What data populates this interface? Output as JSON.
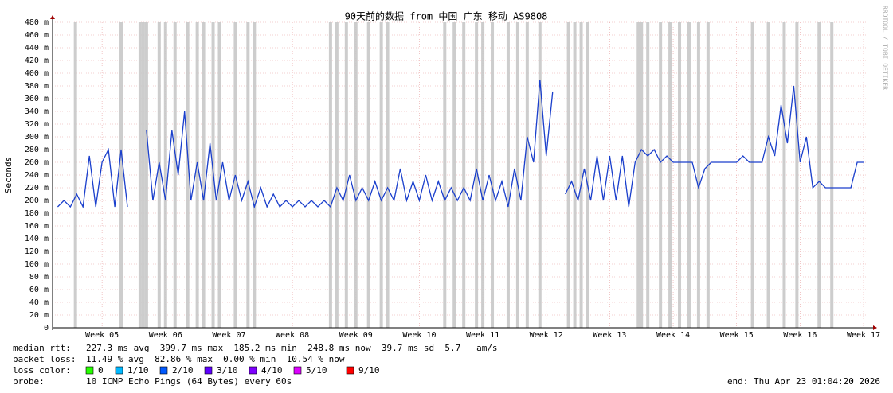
{
  "chart_data": {
    "type": "line",
    "title": "90天前的数据 from 中国 广东 移动 AS9808",
    "y_label": "Seconds",
    "side_label": "RRDTOOL / TOBI OETIKER",
    "grid": true,
    "xlim": [
      4.22,
      17.1
    ],
    "xticks": [
      {
        "value": 5,
        "label": "Week 05"
      },
      {
        "value": 6,
        "label": "Week 06"
      },
      {
        "value": 7,
        "label": "Week 07"
      },
      {
        "value": 8,
        "label": "Week 08"
      },
      {
        "value": 9,
        "label": "Week 09"
      },
      {
        "value": 10,
        "label": "Week 10"
      },
      {
        "value": 11,
        "label": "Week 11"
      },
      {
        "value": 12,
        "label": "Week 12"
      },
      {
        "value": 13,
        "label": "Week 13"
      },
      {
        "value": 14,
        "label": "Week 14"
      },
      {
        "value": 15,
        "label": "Week 15"
      },
      {
        "value": 16,
        "label": "Week 16"
      },
      {
        "value": 17,
        "label": "Week 17"
      }
    ],
    "ylim": [
      0,
      0.48
    ],
    "yticks": [
      0,
      {
        "value": 0.02,
        "label": "20 m"
      },
      {
        "value": 0.04,
        "label": "40 m"
      },
      {
        "value": 0.06,
        "label": "60 m"
      },
      {
        "value": 0.08,
        "label": "80 m"
      },
      {
        "value": 0.1,
        "label": "100 m"
      },
      {
        "value": 0.12,
        "label": "120 m"
      },
      {
        "value": 0.14,
        "label": "140 m"
      },
      {
        "value": 0.16,
        "label": "160 m"
      },
      {
        "value": 0.18,
        "label": "180 m"
      },
      {
        "value": 0.2,
        "label": "200 m"
      },
      {
        "value": 0.22,
        "label": "220 m"
      },
      {
        "value": 0.24,
        "label": "240 m"
      },
      {
        "value": 0.26,
        "label": "260 m"
      },
      {
        "value": 0.28,
        "label": "280 m"
      },
      {
        "value": 0.3,
        "label": "300 m"
      },
      {
        "value": 0.32,
        "label": "320 m"
      },
      {
        "value": 0.34,
        "label": "340 m"
      },
      {
        "value": 0.36,
        "label": "360 m"
      },
      {
        "value": 0.38,
        "label": "380 m"
      },
      {
        "value": 0.4,
        "label": "400 m"
      },
      {
        "value": 0.42,
        "label": "420 m"
      },
      {
        "value": 0.44,
        "label": "440 m"
      },
      {
        "value": 0.46,
        "label": "460 m"
      },
      {
        "value": 0.48,
        "label": "480 m"
      }
    ],
    "loss_color": "#c8c8c8",
    "loss_x": [
      4.58,
      5.3,
      5.6,
      5.65,
      5.7,
      5.9,
      6.0,
      6.15,
      6.35,
      6.5,
      6.6,
      6.75,
      6.85,
      7.1,
      7.3,
      7.4,
      8.6,
      8.7,
      8.85,
      9.0,
      9.2,
      9.4,
      9.5,
      10.4,
      10.55,
      10.7,
      10.9,
      11.0,
      11.15,
      11.4,
      11.55,
      11.7,
      11.9,
      12.35,
      12.45,
      12.55,
      12.65,
      13.45,
      13.5,
      13.6,
      13.8,
      13.95,
      14.1,
      14.25,
      14.4,
      14.55,
      15.25,
      15.5,
      15.75,
      15.95,
      16.3,
      16.5
    ],
    "x": [
      4.3,
      4.4,
      4.5,
      4.6,
      4.7,
      4.8,
      4.9,
      5.0,
      5.1,
      5.2,
      5.3,
      5.4,
      5.5,
      5.6,
      5.7,
      5.8,
      5.9,
      6.0,
      6.1,
      6.2,
      6.3,
      6.4,
      6.5,
      6.6,
      6.7,
      6.8,
      6.9,
      7.0,
      7.1,
      7.2,
      7.3,
      7.4,
      7.5,
      7.6,
      7.7,
      7.8,
      7.9,
      8.0,
      8.1,
      8.2,
      8.3,
      8.4,
      8.5,
      8.6,
      8.7,
      8.8,
      8.9,
      9.0,
      9.1,
      9.2,
      9.3,
      9.4,
      9.5,
      9.6,
      9.7,
      9.8,
      9.9,
      10.0,
      10.1,
      10.2,
      10.3,
      10.4,
      10.5,
      10.6,
      10.7,
      10.8,
      10.9,
      11.0,
      11.1,
      11.2,
      11.3,
      11.4,
      11.5,
      11.6,
      11.7,
      11.8,
      11.9,
      12.0,
      12.1,
      12.2,
      12.3,
      12.4,
      12.5,
      12.6,
      12.7,
      12.8,
      12.9,
      13.0,
      13.1,
      13.2,
      13.3,
      13.4,
      13.5,
      13.6,
      13.7,
      13.8,
      13.9,
      14.0,
      14.1,
      14.2,
      14.3,
      14.4,
      14.5,
      14.6,
      14.7,
      14.8,
      14.9,
      15.0,
      15.1,
      15.2,
      15.3,
      15.4,
      15.5,
      15.6,
      15.7,
      15.8,
      15.9,
      16.0,
      16.1,
      16.2,
      16.3,
      16.4,
      16.5,
      16.6,
      16.7,
      16.8,
      16.9,
      17.0
    ],
    "series": [
      {
        "name": "median rtt",
        "color": "#1a3fcc",
        "values": [
          0.19,
          0.2,
          0.19,
          0.21,
          0.19,
          0.27,
          0.19,
          0.26,
          0.28,
          0.19,
          0.28,
          0.19,
          null,
          null,
          0.31,
          0.2,
          0.26,
          0.2,
          0.31,
          0.24,
          0.34,
          0.2,
          0.26,
          0.2,
          0.29,
          0.2,
          0.26,
          0.2,
          0.24,
          0.2,
          0.23,
          0.19,
          0.22,
          0.19,
          0.21,
          0.19,
          0.2,
          0.19,
          0.2,
          0.19,
          0.2,
          0.19,
          0.2,
          0.19,
          0.22,
          0.2,
          0.24,
          0.2,
          0.22,
          0.2,
          0.23,
          0.2,
          0.22,
          0.2,
          0.25,
          0.2,
          0.23,
          0.2,
          0.24,
          0.2,
          0.23,
          0.2,
          0.22,
          0.2,
          0.22,
          0.2,
          0.25,
          0.2,
          0.24,
          0.2,
          0.23,
          0.19,
          0.25,
          0.2,
          0.3,
          0.26,
          0.39,
          0.27,
          0.37,
          null,
          0.21,
          0.23,
          0.2,
          0.25,
          0.2,
          0.27,
          0.2,
          0.27,
          0.2,
          0.27,
          0.19,
          0.26,
          0.28,
          0.27,
          0.28,
          0.26,
          0.27,
          0.26,
          0.26,
          0.26,
          0.26,
          0.22,
          0.25,
          0.26,
          0.26,
          0.26,
          0.26,
          0.26,
          0.27,
          0.26,
          0.26,
          0.26,
          0.3,
          0.27,
          0.35,
          0.29,
          0.38,
          0.26,
          0.3,
          0.22,
          0.23,
          0.22,
          0.22,
          0.22,
          0.22,
          0.22,
          0.26,
          0.26
        ]
      }
    ],
    "footer": {
      "median_label": "median rtt:",
      "median_text": "227.3 ms avg  399.7 ms max  185.2 ms min  248.8 ms now  39.7 ms sd  5.7   am/s",
      "loss_label": "packet loss:",
      "loss_text": "11.49 % avg  82.86 % max  0.00 % min  10.54 % now",
      "color_label": "loss color:",
      "loss_colors": [
        {
          "label": "0",
          "color": "#26ff00"
        },
        {
          "label": "1/10",
          "color": "#00b8ff"
        },
        {
          "label": "2/10",
          "color": "#0059ff"
        },
        {
          "label": "3/10",
          "color": "#5e00ff"
        },
        {
          "label": "4/10",
          "color": "#7e00ff"
        },
        {
          "label": "5/10",
          "color": "#dd00ff"
        },
        {
          "label": "9/10",
          "color": "#ff0000"
        }
      ],
      "probe_label": "probe:",
      "probe_text": "10 ICMP Echo Pings (64 Bytes) every 60s",
      "end_text": "end: Thu Apr 23 01:04:20 2026"
    }
  }
}
